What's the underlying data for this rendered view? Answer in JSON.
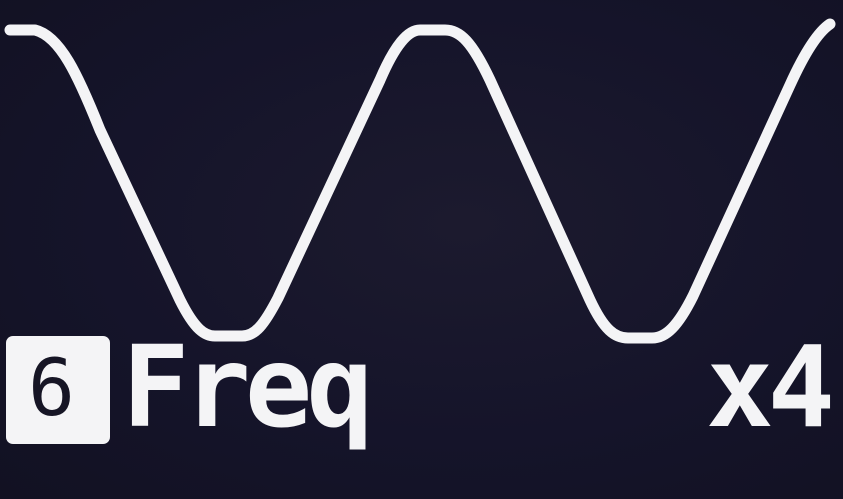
{
  "display": {
    "background_color": "#161525",
    "foreground_color": "#f4f4f6"
  },
  "waveform": {
    "shape": "sine"
  },
  "status_bar": {
    "channel_number": "6",
    "parameter_label": "Freq",
    "multiplier": "x4"
  }
}
